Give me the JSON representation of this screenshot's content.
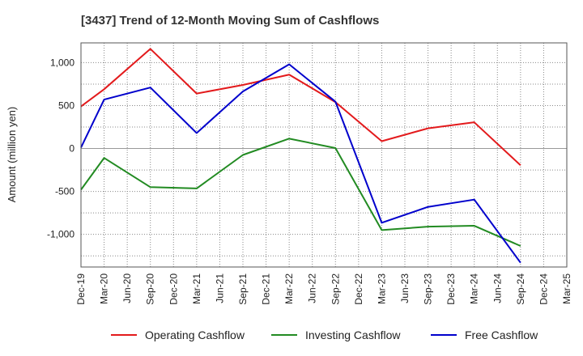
{
  "chart_data": {
    "type": "line",
    "title": "[3437]  Trend of 12-Month Moving Sum of Cashflows",
    "xlabel": "",
    "ylabel": "Amount (million yen)",
    "x": [
      "Dec-19",
      "Mar-20",
      "Jun-20",
      "Sep-20",
      "Dec-20",
      "Mar-21",
      "Jun-21",
      "Sep-21",
      "Dec-21",
      "Mar-22",
      "Jun-22",
      "Sep-22",
      "Dec-22",
      "Mar-23",
      "Jun-23",
      "Sep-23",
      "Dec-23",
      "Mar-24",
      "Jun-24",
      "Sep-24",
      "Dec-24",
      "Mar-25"
    ],
    "ylim": [
      -1380,
      1230
    ],
    "yticks": [
      1000,
      500,
      0,
      -500,
      -1000
    ],
    "ytick_labels": [
      "1,000",
      "500",
      "0",
      "-500",
      "-1,000"
    ],
    "grid": true,
    "legend_position": "bottom",
    "series": [
      {
        "name": "Operating Cashflow",
        "color": "#e31a1c",
        "values": [
          490,
          690,
          null,
          1160,
          null,
          640,
          null,
          740,
          null,
          860,
          null,
          540,
          null,
          85,
          null,
          235,
          null,
          305,
          null,
          -195,
          null,
          null
        ]
      },
      {
        "name": "Investing Cashflow",
        "color": "#228b22",
        "values": [
          -480,
          -110,
          null,
          -450,
          null,
          -465,
          null,
          -75,
          null,
          115,
          null,
          5,
          null,
          -950,
          null,
          -910,
          null,
          -900,
          null,
          -1135,
          null,
          null
        ]
      },
      {
        "name": "Free Cashflow",
        "color": "#0000cc",
        "values": [
          10,
          570,
          null,
          710,
          null,
          180,
          null,
          665,
          null,
          980,
          null,
          545,
          null,
          -865,
          null,
          -680,
          null,
          -595,
          null,
          -1330,
          null,
          null
        ]
      }
    ]
  }
}
